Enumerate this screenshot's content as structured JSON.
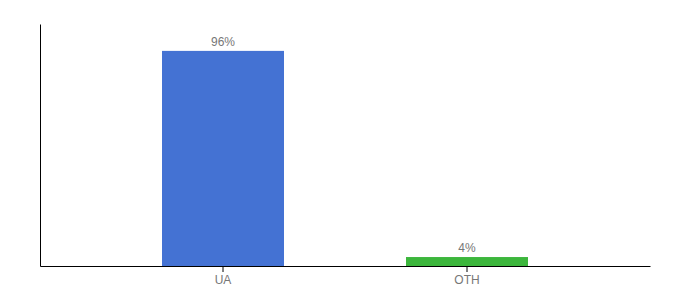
{
  "chart_data": {
    "type": "bar",
    "categories": [
      "UA",
      "OTH"
    ],
    "values": [
      96,
      4
    ],
    "value_labels": [
      "96%",
      "4%"
    ],
    "colors": [
      "#4472d3",
      "#3cb63c"
    ],
    "ylim": [
      0,
      108
    ],
    "data_labels": true,
    "tick_labels": "x"
  }
}
